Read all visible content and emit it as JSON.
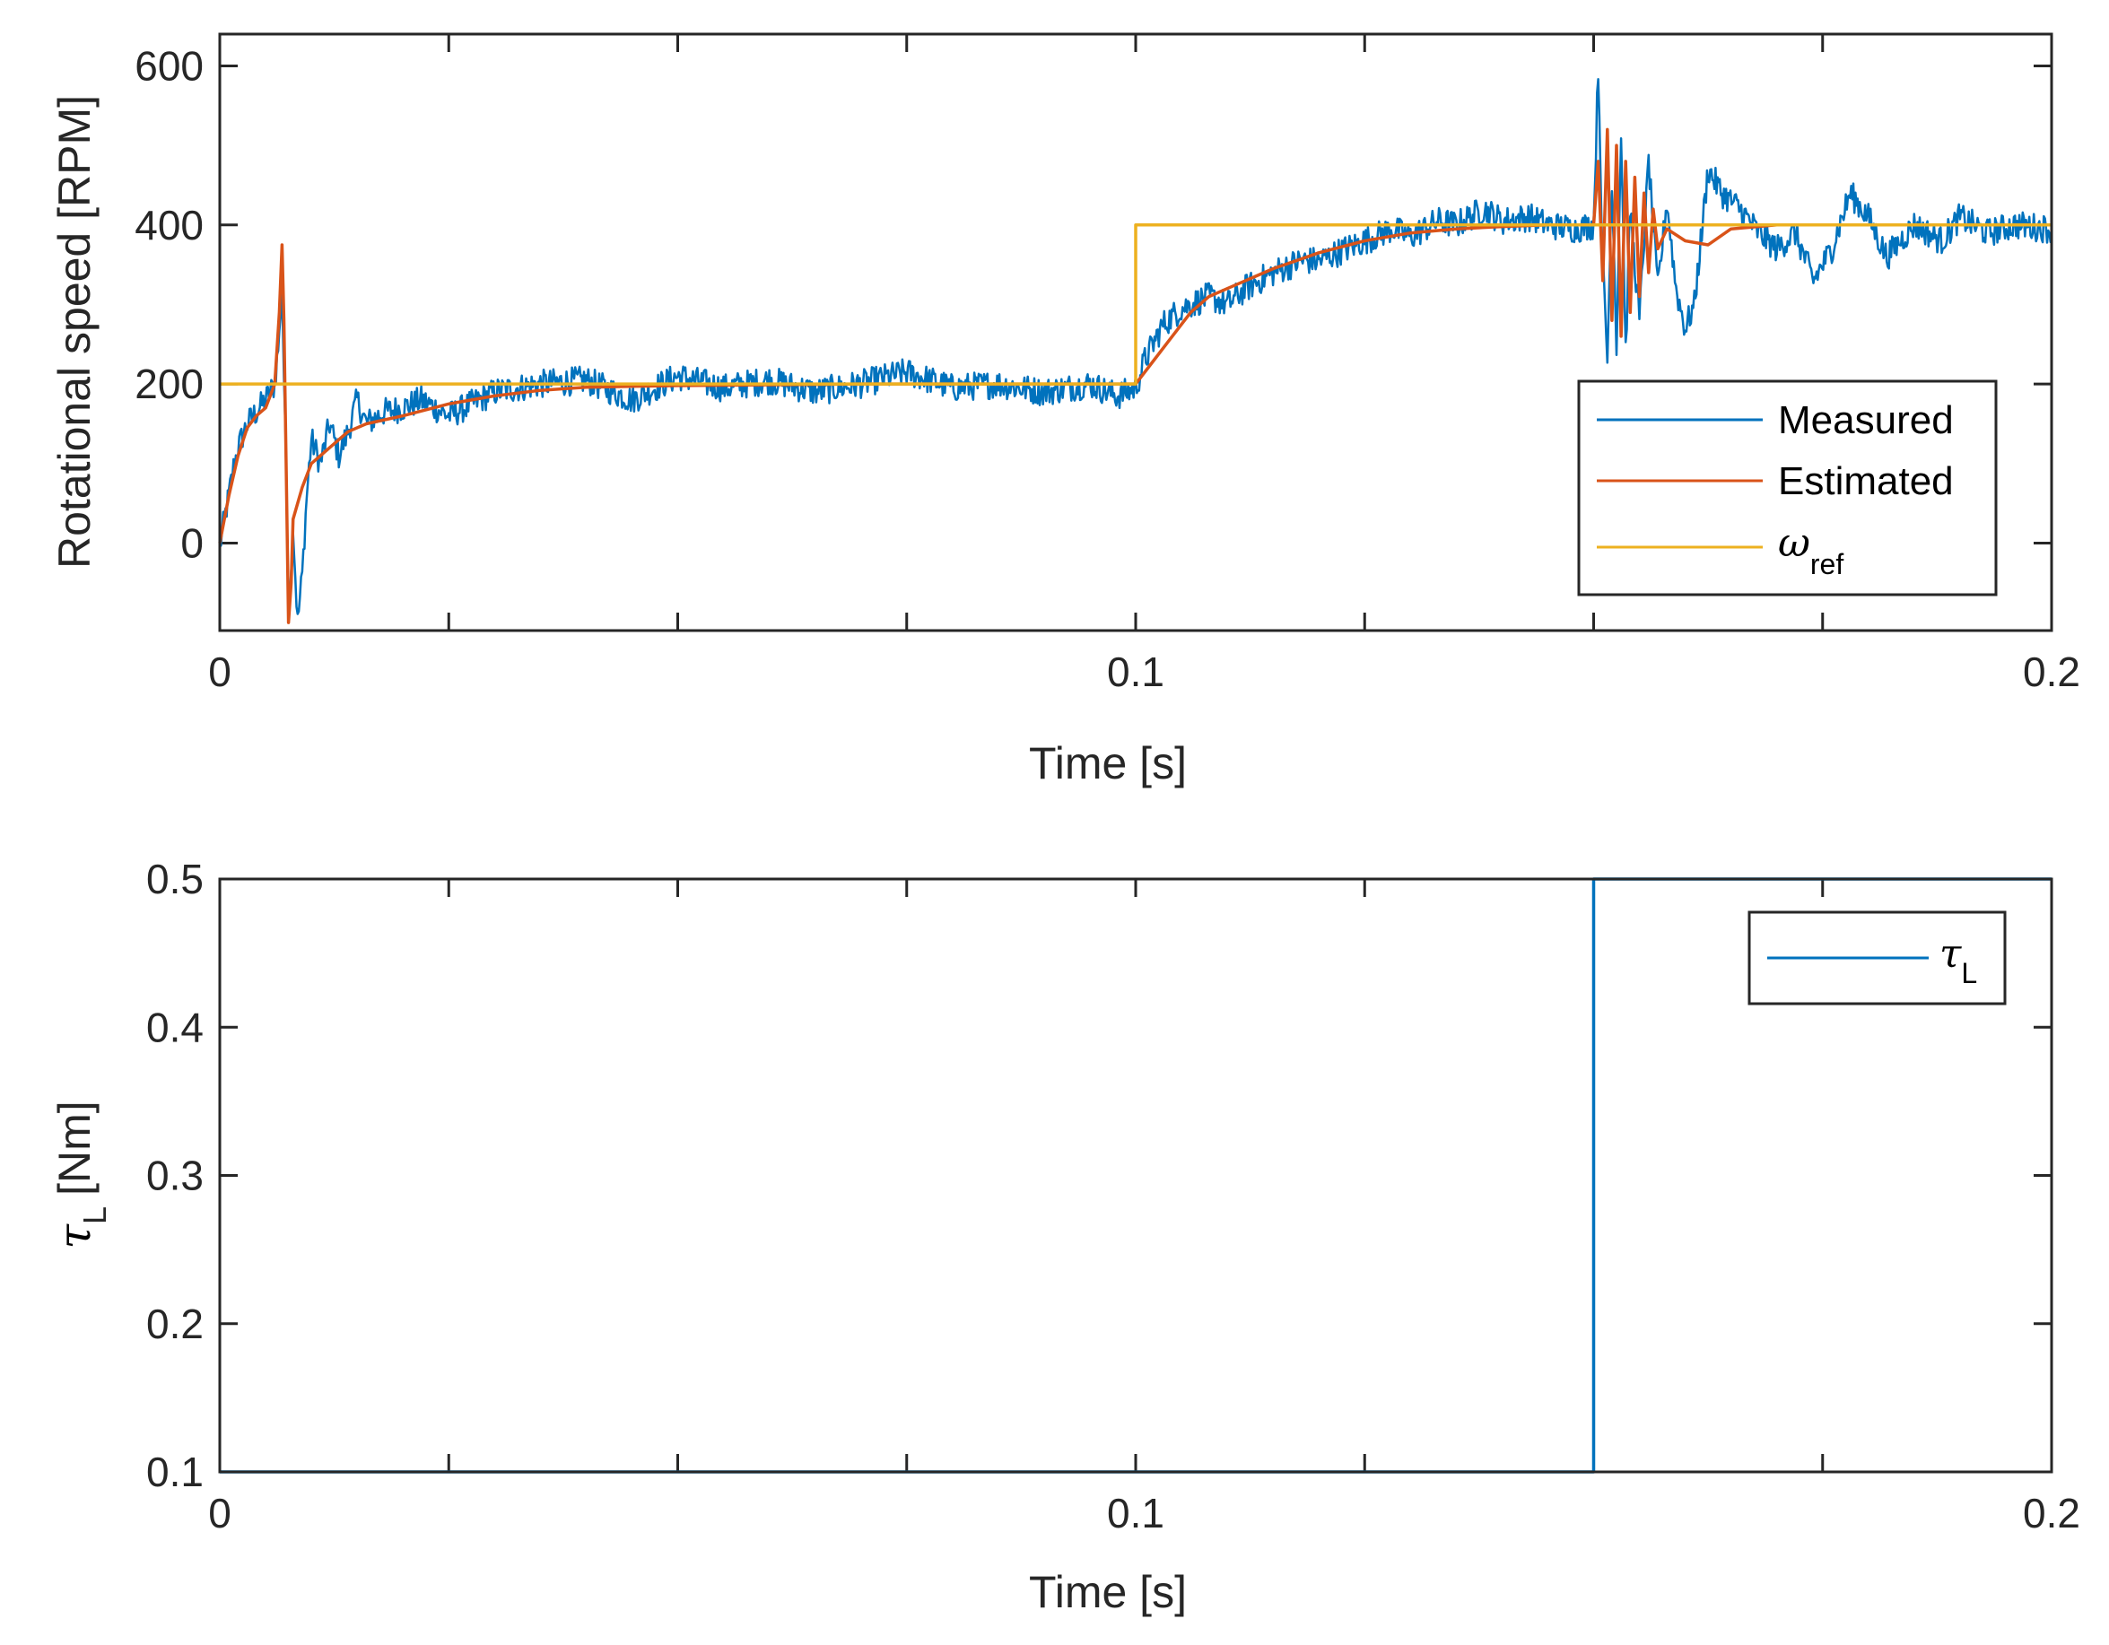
{
  "colors": {
    "measured": "#0072BD",
    "estimated": "#D95319",
    "reference": "#EDB120",
    "tau": "#0072BD",
    "axis": "#262626"
  },
  "chart_data": [
    {
      "type": "line",
      "title": "",
      "xlabel": "Time [s]",
      "ylabel": "Rotational speed [RPM]",
      "xlim": [
        0,
        0.2
      ],
      "ylim": [
        -110,
        640
      ],
      "x_ticks": [
        0,
        0.025,
        0.05,
        0.075,
        0.1,
        0.125,
        0.15,
        0.175,
        0.2
      ],
      "x_tick_labels": [
        {
          "value": 0,
          "label": "0"
        },
        {
          "value": 0.1,
          "label": "0.1"
        },
        {
          "value": 0.2,
          "label": "0.2"
        }
      ],
      "y_tick_labels": [
        {
          "value": 0,
          "label": "0"
        },
        {
          "value": 200,
          "label": "200"
        },
        {
          "value": 400,
          "label": "400"
        },
        {
          "value": 600,
          "label": "600"
        }
      ],
      "legend": {
        "placement": "bottom-right",
        "entries": [
          {
            "name": "Measured",
            "sub": ""
          },
          {
            "name": "Estimated",
            "sub": ""
          },
          {
            "name": "ω",
            "sub": "ref"
          }
        ]
      },
      "series": [
        {
          "name": "Measured",
          "x": [
            0,
            0.0005,
            0.001,
            0.0015,
            0.002,
            0.003,
            0.004,
            0.005,
            0.006,
            0.0065,
            0.0068,
            0.007,
            0.0073,
            0.0075,
            0.0078,
            0.008,
            0.0085,
            0.009,
            0.0095,
            0.01,
            0.011,
            0.012,
            0.013,
            0.014,
            0.015,
            0.016,
            0.018,
            0.02,
            0.022,
            0.025,
            0.03,
            0.035,
            0.04,
            0.045,
            0.05,
            0.055,
            0.06,
            0.065,
            0.07,
            0.075,
            0.08,
            0.085,
            0.09,
            0.095,
            0.098,
            0.1,
            0.101,
            0.103,
            0.105,
            0.108,
            0.11,
            0.112,
            0.115,
            0.118,
            0.12,
            0.123,
            0.125,
            0.128,
            0.13,
            0.133,
            0.135,
            0.138,
            0.14,
            0.143,
            0.145,
            0.148,
            0.15,
            0.1505,
            0.151,
            0.1515,
            0.152,
            0.1525,
            0.153,
            0.1535,
            0.154,
            0.155,
            0.156,
            0.157,
            0.158,
            0.159,
            0.16,
            0.161,
            0.1625,
            0.164,
            0.166,
            0.168,
            0.17,
            0.172,
            0.174,
            0.176,
            0.178,
            0.18,
            0.182,
            0.185,
            0.188,
            0.19,
            0.193,
            0.196,
            0.2
          ],
          "y": [
            -5,
            30,
            60,
            95,
            120,
            150,
            165,
            180,
            200,
            260,
            330,
            210,
            60,
            -60,
            -40,
            20,
            -100,
            -40,
            60,
            130,
            100,
            150,
            110,
            140,
            180,
            150,
            165,
            170,
            180,
            160,
            190,
            200,
            205,
            180,
            210,
            195,
            205,
            190,
            200,
            215,
            195,
            200,
            190,
            200,
            185,
            195,
            230,
            275,
            295,
            310,
            300,
            320,
            340,
            355,
            355,
            370,
            380,
            395,
            385,
            405,
            400,
            420,
            405,
            410,
            400,
            395,
            400,
            600,
            350,
            230,
            460,
            250,
            520,
            240,
            420,
            280,
            480,
            320,
            430,
            320,
            270,
            300,
            470,
            440,
            420,
            390,
            370,
            390,
            330,
            370,
            440,
            410,
            360,
            400,
            380,
            410,
            390,
            400,
            395
          ]
        },
        {
          "name": "Estimated",
          "x": [
            0,
            0.001,
            0.002,
            0.003,
            0.004,
            0.005,
            0.006,
            0.0065,
            0.0068,
            0.007,
            0.0073,
            0.0075,
            0.0078,
            0.008,
            0.009,
            0.01,
            0.012,
            0.014,
            0.016,
            0.018,
            0.02,
            0.025,
            0.03,
            0.035,
            0.04,
            0.045,
            0.05,
            0.06,
            0.07,
            0.08,
            0.09,
            0.1,
            0.102,
            0.104,
            0.106,
            0.108,
            0.11,
            0.115,
            0.12,
            0.125,
            0.13,
            0.135,
            0.14,
            0.145,
            0.15,
            0.1505,
            0.151,
            0.1515,
            0.152,
            0.1525,
            0.153,
            0.1535,
            0.154,
            0.1545,
            0.155,
            0.1555,
            0.156,
            0.1565,
            0.157,
            0.158,
            0.16,
            0.1625,
            0.165,
            0.17,
            0.175,
            0.18,
            0.19,
            0.2
          ],
          "y": [
            0,
            60,
            110,
            145,
            160,
            170,
            200,
            290,
            375,
            280,
            60,
            -100,
            -50,
            30,
            70,
            100,
            120,
            140,
            150,
            155,
            160,
            175,
            185,
            192,
            196,
            197,
            198,
            199,
            200,
            200,
            200,
            200,
            230,
            260,
            290,
            310,
            320,
            345,
            365,
            380,
            390,
            395,
            398,
            400,
            400,
            480,
            330,
            520,
            280,
            500,
            260,
            480,
            290,
            460,
            310,
            440,
            340,
            420,
            370,
            395,
            380,
            375,
            395,
            400,
            400,
            400,
            400,
            400
          ]
        },
        {
          "name": "ω_ref",
          "x": [
            0,
            0.1,
            0.1,
            0.2
          ],
          "y": [
            200,
            200,
            400,
            400
          ]
        }
      ]
    },
    {
      "type": "line",
      "title": "",
      "xlabel": "Time [s]",
      "ylabel": "[Nm]",
      "ylabel_symbol": "τ",
      "ylabel_sub": "L",
      "xlim": [
        0,
        0.2
      ],
      "ylim": [
        0.1,
        0.5
      ],
      "x_ticks": [
        0,
        0.025,
        0.05,
        0.075,
        0.1,
        0.125,
        0.15,
        0.175,
        0.2
      ],
      "x_tick_labels": [
        {
          "value": 0,
          "label": "0"
        },
        {
          "value": 0.1,
          "label": "0.1"
        },
        {
          "value": 0.2,
          "label": "0.2"
        }
      ],
      "y_tick_labels": [
        {
          "value": 0.1,
          "label": "0.1"
        },
        {
          "value": 0.2,
          "label": "0.2"
        },
        {
          "value": 0.3,
          "label": "0.3"
        },
        {
          "value": 0.4,
          "label": "0.4"
        },
        {
          "value": 0.5,
          "label": "0.5"
        }
      ],
      "legend": {
        "placement": "top-right",
        "entries": [
          {
            "name": "τ",
            "sub": "L"
          }
        ]
      },
      "series": [
        {
          "name": "τ_L",
          "x": [
            0,
            0.15,
            0.15,
            0.2
          ],
          "y": [
            0.1,
            0.1,
            0.5,
            0.5
          ]
        }
      ]
    }
  ]
}
